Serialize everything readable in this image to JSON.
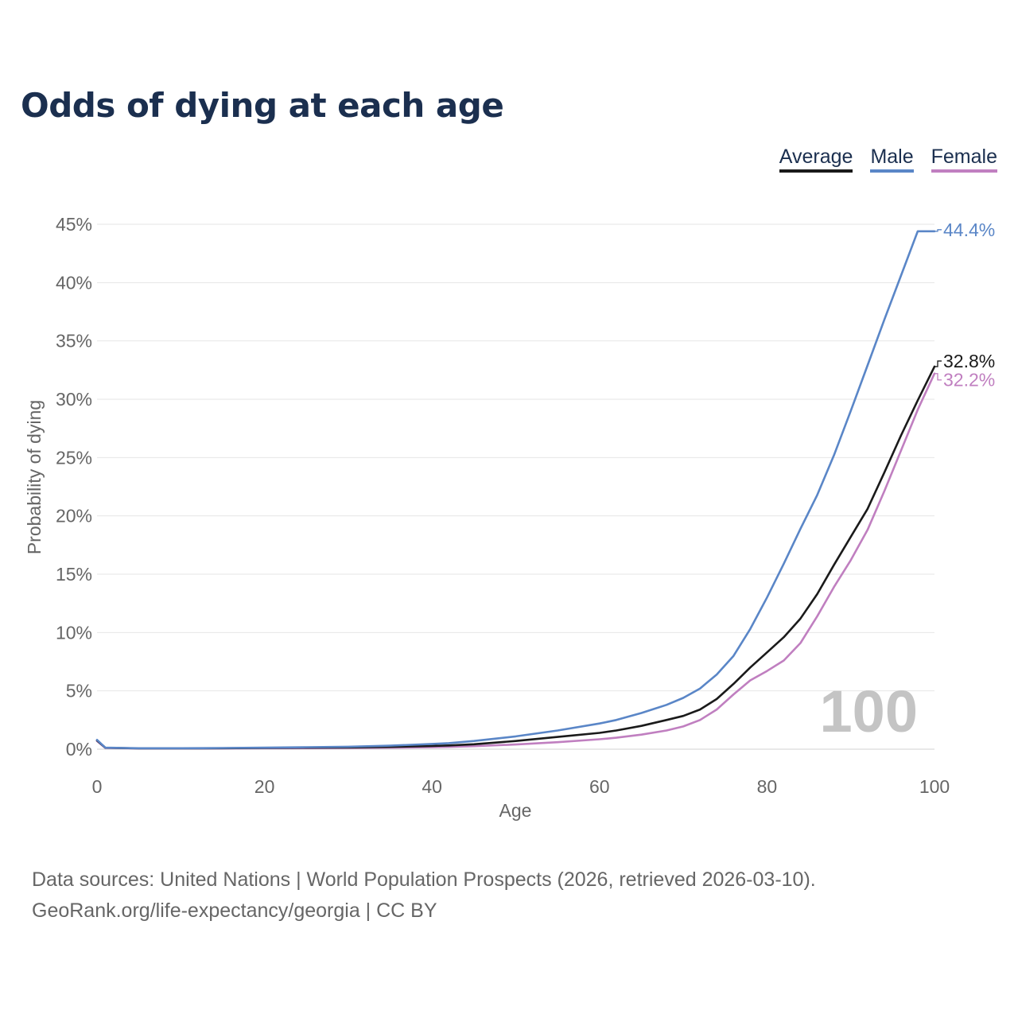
{
  "chart_data": {
    "type": "line",
    "title": "Odds of dying at each age",
    "xlabel": "Age",
    "ylabel": "Probability of dying",
    "xlim": [
      0,
      100
    ],
    "ylim": [
      0,
      45
    ],
    "x_ticks": [
      {
        "value": 0,
        "label": "0"
      },
      {
        "value": 20,
        "label": "20"
      },
      {
        "value": 40,
        "label": "40"
      },
      {
        "value": 60,
        "label": "60"
      },
      {
        "value": 80,
        "label": "80"
      },
      {
        "value": 100,
        "label": "100"
      }
    ],
    "y_ticks": [
      {
        "value": 0,
        "label": "0%"
      },
      {
        "value": 5,
        "label": "5%"
      },
      {
        "value": 10,
        "label": "10%"
      },
      {
        "value": 15,
        "label": "15%"
      },
      {
        "value": 20,
        "label": "20%"
      },
      {
        "value": 25,
        "label": "25%"
      },
      {
        "value": 30,
        "label": "30%"
      },
      {
        "value": 35,
        "label": "35%"
      },
      {
        "value": 40,
        "label": "40%"
      },
      {
        "value": 45,
        "label": "45%"
      }
    ],
    "grid": true,
    "legend_position": "top-right",
    "highlight_label": "100",
    "series": [
      {
        "name": "Average",
        "color": "#1a1a1a",
        "end_label": "32.8%",
        "x": [
          0,
          1,
          5,
          10,
          15,
          20,
          25,
          30,
          35,
          40,
          42,
          45,
          50,
          55,
          60,
          62,
          65,
          68,
          70,
          72,
          74,
          76,
          78,
          80,
          82,
          84,
          86,
          88,
          90,
          92,
          94,
          96,
          98,
          100
        ],
        "values": [
          0.75,
          0.12,
          0.07,
          0.07,
          0.08,
          0.1,
          0.13,
          0.15,
          0.2,
          0.28,
          0.32,
          0.42,
          0.7,
          1.05,
          1.4,
          1.6,
          2.0,
          2.5,
          2.85,
          3.4,
          4.3,
          5.6,
          7.0,
          8.3,
          9.6,
          11.2,
          13.3,
          15.8,
          18.2,
          20.6,
          23.7,
          26.9,
          29.9,
          32.8
        ]
      },
      {
        "name": "Male",
        "color": "#5a86c7",
        "end_label": "44.4%",
        "x": [
          0,
          1,
          5,
          10,
          15,
          20,
          25,
          30,
          35,
          40,
          42,
          45,
          50,
          55,
          60,
          62,
          65,
          68,
          70,
          72,
          74,
          76,
          78,
          80,
          82,
          84,
          86,
          88,
          90,
          92,
          94,
          96,
          98,
          100
        ],
        "values": [
          0.8,
          0.13,
          0.08,
          0.08,
          0.1,
          0.13,
          0.17,
          0.21,
          0.3,
          0.45,
          0.52,
          0.7,
          1.1,
          1.6,
          2.2,
          2.5,
          3.1,
          3.8,
          4.4,
          5.2,
          6.4,
          8.0,
          10.3,
          13.0,
          15.9,
          18.9,
          21.8,
          25.2,
          29.0,
          32.9,
          36.8,
          40.6,
          44.4,
          44.4
        ]
      },
      {
        "name": "Female",
        "color": "#c07fc0",
        "end_label": "32.2%",
        "x": [
          0,
          1,
          5,
          10,
          15,
          20,
          25,
          30,
          35,
          40,
          42,
          45,
          50,
          55,
          60,
          62,
          65,
          68,
          70,
          72,
          74,
          76,
          78,
          80,
          82,
          84,
          86,
          88,
          90,
          92,
          94,
          96,
          98,
          100
        ],
        "values": [
          0.7,
          0.1,
          0.06,
          0.06,
          0.06,
          0.08,
          0.09,
          0.1,
          0.13,
          0.17,
          0.2,
          0.26,
          0.4,
          0.6,
          0.85,
          0.98,
          1.25,
          1.6,
          1.95,
          2.5,
          3.4,
          4.7,
          5.9,
          6.7,
          7.6,
          9.1,
          11.4,
          13.9,
          16.2,
          18.8,
          22.1,
          25.6,
          29.1,
          32.2
        ]
      }
    ]
  },
  "footer": {
    "line1": "Data sources: United Nations | World Population Prospects (2026, retrieved 2026-03-10).",
    "line2": "GeoRank.org/life-expectancy/georgia | CC BY"
  }
}
